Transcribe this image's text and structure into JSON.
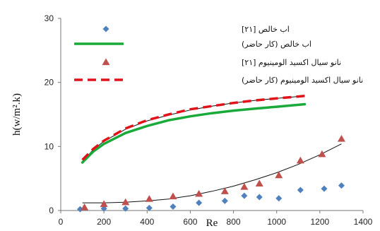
{
  "chart_data": {
    "type": "scatter",
    "title": "",
    "xlabel": "Re",
    "ylabel": "h(w/m².k)",
    "xlim": [
      0,
      1400
    ],
    "ylim": [
      0,
      30
    ],
    "x_ticks": [
      "0",
      "200",
      "400",
      "600",
      "800",
      "1000",
      "1200",
      "1400"
    ],
    "y_ticks": [
      "0",
      "10",
      "20",
      "30"
    ],
    "grid": false,
    "legend_position": "top-right",
    "series": [
      {
        "name": "اب خالص [۲۱]",
        "kind": "scatter-diamond",
        "color": "#4f81bd",
        "x": [
          90,
          200,
          300,
          410,
          520,
          640,
          760,
          850,
          920,
          1010,
          1110,
          1220,
          1300
        ],
        "y": [
          0.2,
          0.3,
          0.3,
          0.4,
          0.6,
          1.2,
          1.5,
          2.3,
          2.1,
          1.9,
          3.2,
          3.4,
          3.9
        ]
      },
      {
        "name": "اب خالص (کار حاضر)",
        "kind": "line-solid",
        "color": "#1aaa3a",
        "x": [
          100,
          150,
          200,
          300,
          400,
          500,
          600,
          700,
          800,
          900,
          1000,
          1100,
          1130
        ],
        "y": [
          7.5,
          9.2,
          10.4,
          12.1,
          13.2,
          14.1,
          14.7,
          15.2,
          15.6,
          15.9,
          16.2,
          16.5,
          16.6
        ]
      },
      {
        "name": "نانو سیال اکسید الومینیوم [۲۱]",
        "kind": "scatter-triangle",
        "color": "#c0504d",
        "x": [
          110,
          200,
          300,
          410,
          520,
          640,
          760,
          850,
          920,
          1010,
          1110,
          1210,
          1300
        ],
        "y": [
          0.5,
          1.0,
          1.3,
          1.8,
          2.2,
          2.6,
          3.0,
          3.7,
          4.2,
          5.5,
          7.8,
          8.8,
          11.2
        ]
      },
      {
        "name": "نانو سیال اکسید الومینیوم (کار حاضر)",
        "kind": "line-dashed",
        "color": "#e0121a",
        "x": [
          100,
          150,
          200,
          300,
          400,
          500,
          600,
          700,
          800,
          900,
          1000,
          1100,
          1130
        ],
        "y": [
          7.9,
          9.6,
          10.9,
          12.8,
          14.1,
          15.0,
          15.8,
          16.3,
          16.8,
          17.2,
          17.5,
          17.8,
          17.9
        ]
      }
    ],
    "trendlines": [
      {
        "of": "اب خالص (کار حاضر)",
        "color": "#111111",
        "x": [
          100,
          150,
          200,
          300,
          400,
          500,
          600,
          700,
          800,
          900,
          1000,
          1100,
          1130
        ],
        "y": [
          7.6,
          9.5,
          10.8,
          12.7,
          14.0,
          14.9,
          15.7,
          16.3,
          16.8,
          17.2,
          17.5,
          17.8,
          17.9
        ]
      },
      {
        "of": "نانو سیال اکسید الومینیوم [۲۱]",
        "color": "#111111",
        "x": [
          100,
          200,
          300,
          400,
          500,
          600,
          700,
          800,
          900,
          1000,
          1100,
          1200,
          1300
        ],
        "y": [
          1.2,
          1.2,
          1.3,
          1.5,
          1.8,
          2.3,
          3.0,
          3.8,
          4.8,
          5.9,
          7.2,
          8.7,
          10.4
        ]
      }
    ]
  }
}
